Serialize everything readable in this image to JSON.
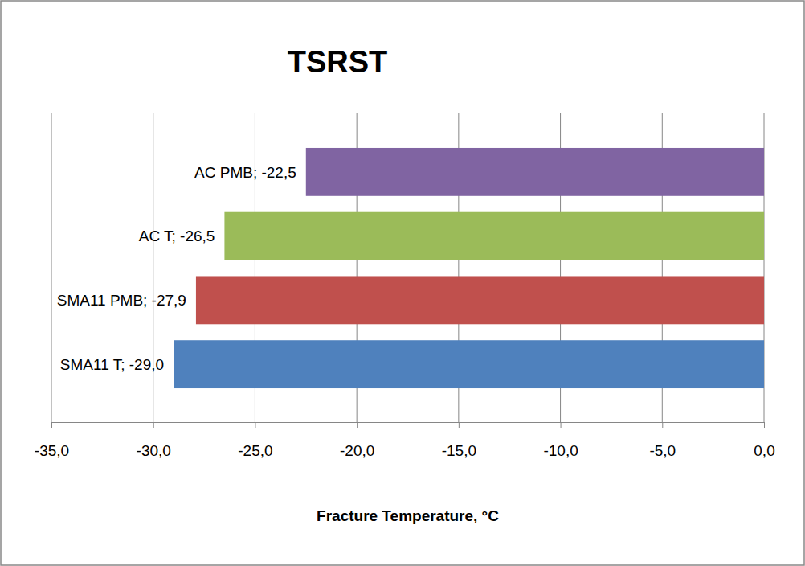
{
  "chart_data": {
    "type": "bar",
    "title": "TSRST",
    "orientation": "horizontal",
    "x_label": "Fracture Temperature, °C",
    "categories": [
      "SMA11 T; -29,0",
      "SMA11 PMB; -27,9",
      "AC T; -26,5",
      "AC PMB; -22,5"
    ],
    "values": [
      -29.0,
      -27.9,
      -26.5,
      -22.5
    ],
    "colors": [
      "#4f81bd",
      "#c0504d",
      "#9bbb59",
      "#8064a2"
    ],
    "xlim": [
      -35,
      0
    ],
    "xticks": [
      {
        "value": -35,
        "label": "-35,0"
      },
      {
        "value": -30,
        "label": "-30,0"
      },
      {
        "value": -25,
        "label": "-25,0"
      },
      {
        "value": -20,
        "label": "-20,0"
      },
      {
        "value": -15,
        "label": "-15,0"
      },
      {
        "value": -10,
        "label": "-10,0"
      },
      {
        "value": -5,
        "label": "-5,0"
      },
      {
        "value": 0,
        "label": "0,0"
      }
    ],
    "grid": true,
    "data_labels": true,
    "tick_labels": "x"
  }
}
